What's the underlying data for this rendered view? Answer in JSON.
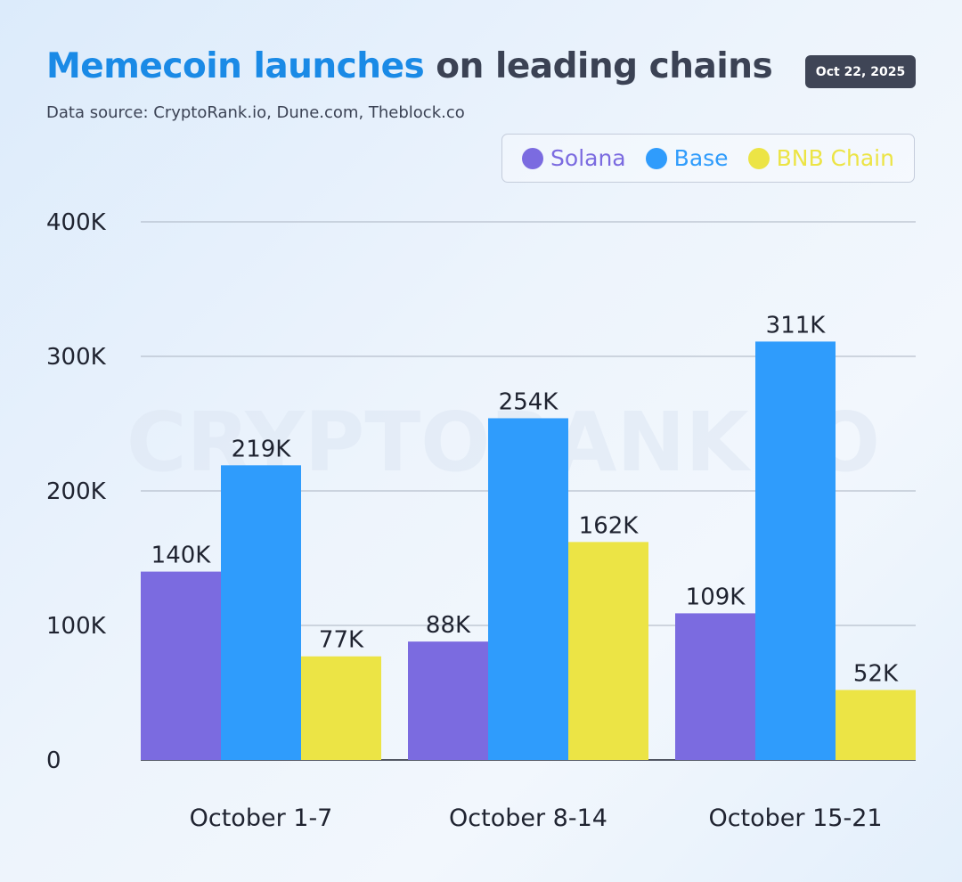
{
  "header": {
    "title_highlight": "Memecoin launches",
    "title_rest": " on leading chains",
    "subtitle": "Data source: CryptoRank.io, Dune.com, Theblock.co",
    "date": "Oct 22, 2025"
  },
  "watermark": "CRYPTORANK.IO",
  "colors": {
    "accent": "#1a8ae6",
    "title_text": "#3b4254",
    "badge_bg": "#3f4556"
  },
  "chart_data": {
    "type": "bar",
    "title": "Memecoin launches on leading chains",
    "categories": [
      "October 1-7",
      "October 8-14",
      "October 15-21"
    ],
    "series": [
      {
        "name": "Solana",
        "color": "#7b6be0",
        "values": [
          140,
          88,
          109
        ],
        "labels": [
          "140K",
          "88K",
          "109K"
        ]
      },
      {
        "name": "Base",
        "color": "#2f9cfc",
        "values": [
          219,
          254,
          311
        ],
        "labels": [
          "219K",
          "254K",
          "311K"
        ]
      },
      {
        "name": "BNB Chain",
        "color": "#ece445",
        "values": [
          77,
          162,
          52
        ],
        "labels": [
          "77K",
          "162K",
          "52K"
        ]
      }
    ],
    "ylim": [
      0,
      400
    ],
    "yticks": [
      0,
      100,
      200,
      300,
      400
    ],
    "ytick_labels": [
      "0",
      "100K",
      "200K",
      "300K",
      "400K"
    ],
    "grid": true,
    "legend_position": "top-right",
    "xlabel": "",
    "ylabel": ""
  }
}
